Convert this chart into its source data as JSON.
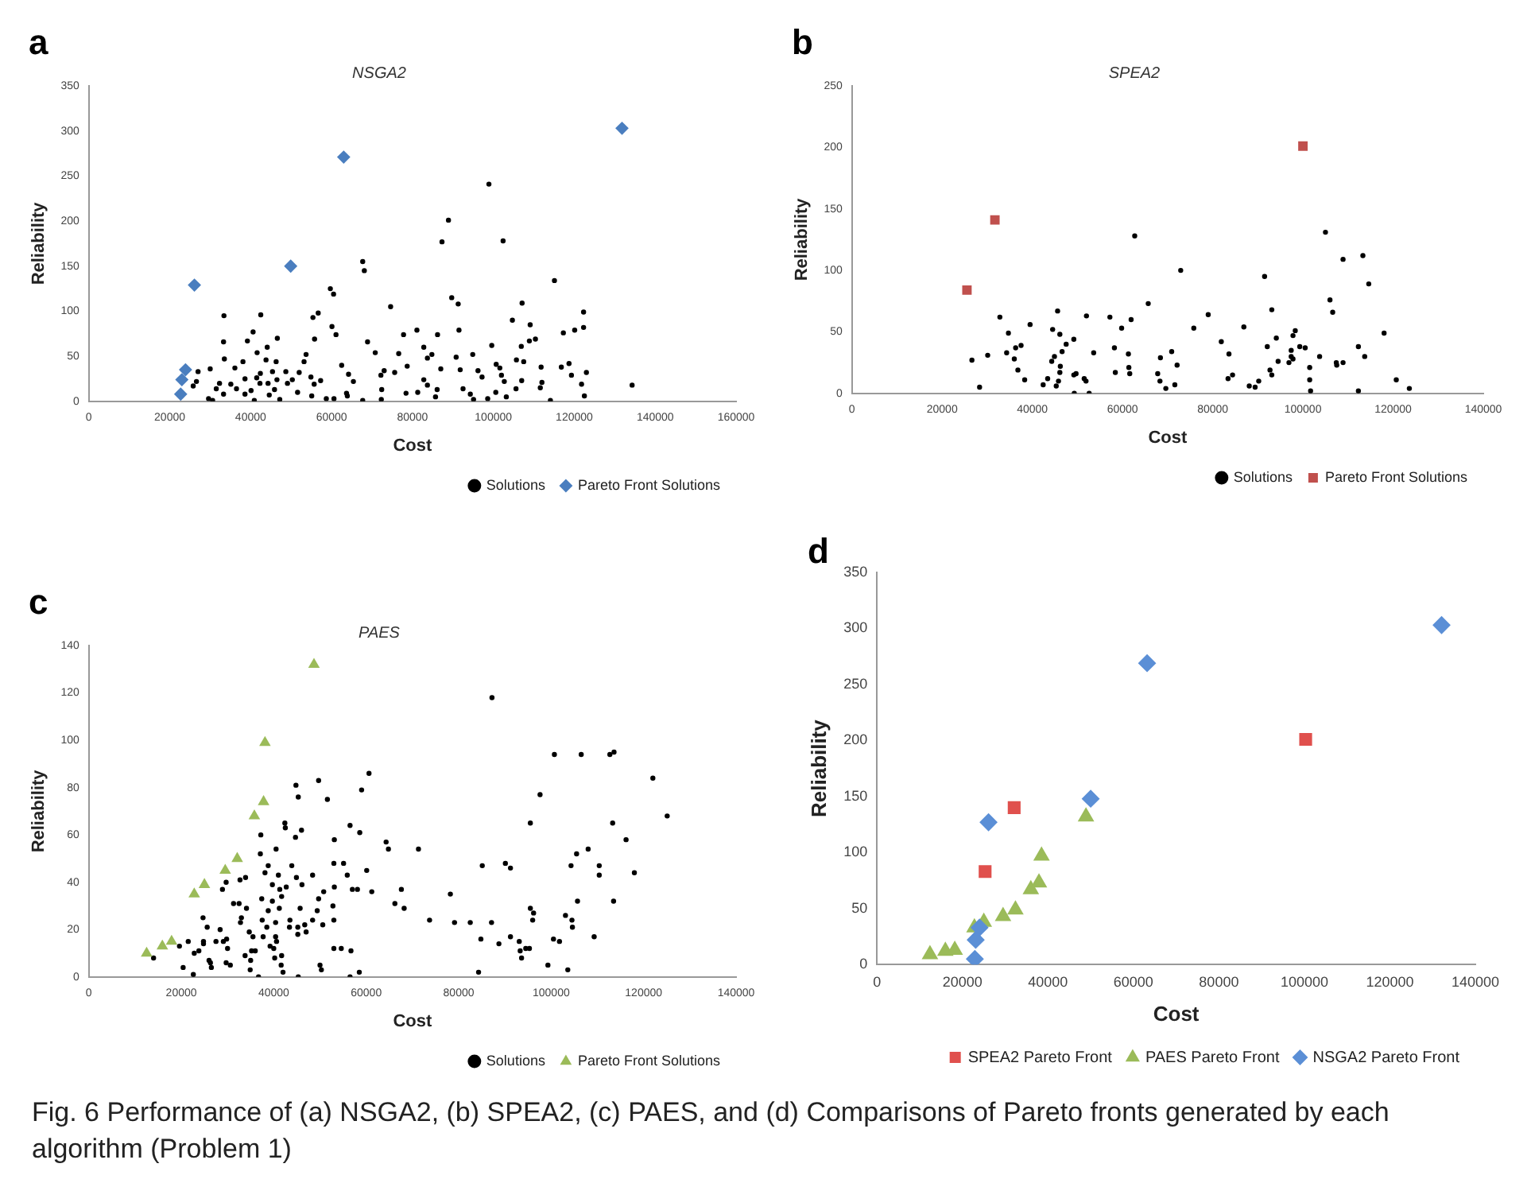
{
  "chart_data": [
    {
      "type": "scatter",
      "title": "NSGA2",
      "xlabel": "Cost",
      "ylabel": "Reliability",
      "annotations": [
        "a"
      ],
      "xlim": [
        0,
        160000
      ],
      "xticks": [
        0,
        20000,
        40000,
        60000,
        80000,
        100000,
        120000,
        140000,
        160000
      ],
      "ylim": [
        0,
        350
      ],
      "yticks": [
        0,
        50,
        100,
        150,
        200,
        250,
        300,
        350
      ],
      "legend": "bottom",
      "grid": false,
      "series": [
        {
          "name": "Solutions",
          "color": "#000000",
          "marker": "circle",
          "x": [
            98900,
            88900,
            87300,
            102400,
            67700,
            68100,
            59700,
            60500,
            115100,
            89700,
            91300,
            107100,
            74600,
            33400,
            42500,
            56700,
            55400,
            122300,
            104700,
            109100,
            91500,
            81100,
            122300,
            120100,
            60100,
            40600,
            77800,
            86200,
            61100,
            117300,
            39200,
            33300,
            68900,
            55800,
            46600,
            108900,
            110400,
            106900,
            99600,
            44100,
            82800,
            70800,
            76600,
            41600,
            94900,
            53700,
            53200,
            84800,
            83700,
            33500,
            38100,
            43800,
            46300,
            90800,
            105700,
            107500,
            118700,
            116800,
            62500,
            78700,
            36100,
            30000,
            96200,
            100700,
            101600,
            111800,
            73000,
            75600,
            42400,
            45400,
            48700,
            52000,
            64200,
            27000,
            123000,
            119300,
            91800,
            87000,
            38600,
            41500,
            46500,
            50300,
            54900,
            57300,
            65400,
            72200,
            82800,
            83700,
            97200,
            102000,
            102700,
            107000,
            112000,
            121800,
            134300,
            32300,
            35100,
            42300,
            44300,
            49100,
            55700,
            25800,
            26600,
            31500,
            36500,
            40100,
            45900,
            51600,
            63700,
            72400,
            81300,
            86100,
            92500,
            94300,
            100600,
            105600,
            111600,
            33300,
            38600,
            44600,
            55100,
            63900,
            78400,
            85700,
            103200,
            122500,
            29600,
            30600,
            40900,
            47200,
            58700,
            60600,
            67700,
            72300,
            95100,
            98600,
            114100
          ],
          "values": [
            241,
            201,
            177,
            178,
            155,
            145,
            125,
            119,
            134,
            115,
            108,
            109,
            105,
            95,
            96,
            98,
            93,
            99,
            90,
            85,
            79,
            79,
            82,
            79,
            83,
            77,
            74,
            74,
            74,
            76,
            67,
            66,
            66,
            69,
            70,
            67,
            69,
            61,
            62,
            60,
            60,
            54,
            53,
            54,
            52,
            52,
            44,
            52,
            48,
            47,
            44,
            46,
            44,
            49,
            46,
            44,
            42,
            38,
            40,
            39,
            37,
            36,
            34,
            41,
            37,
            38,
            34,
            32,
            31,
            33,
            33,
            32,
            30,
            33,
            32,
            29,
            35,
            36,
            25,
            26,
            24,
            24,
            27,
            23,
            22,
            29,
            24,
            18,
            27,
            29,
            22,
            23,
            21,
            19,
            18,
            20,
            19,
            20,
            20,
            20,
            19,
            17,
            22,
            14,
            14,
            12,
            13,
            10,
            9,
            13,
            10,
            13,
            14,
            8,
            10,
            14,
            15,
            8,
            8,
            7,
            6,
            6,
            9,
            5,
            5,
            6,
            3,
            1,
            1,
            2,
            3,
            3,
            1,
            2,
            2,
            3,
            1
          ]
        },
        {
          "name": "Pareto Front Solutions",
          "color": "#4a7ebf",
          "marker": "diamond",
          "x": [
            22700,
            23000,
            23900,
            26100,
            49900,
            63000,
            131800
          ],
          "values": [
            8,
            24,
            35,
            129,
            150,
            271,
            303
          ]
        }
      ]
    },
    {
      "type": "scatter",
      "title": "SPEA2",
      "xlabel": "Cost",
      "ylabel": "Reliability",
      "annotations": [
        "b"
      ],
      "xlim": [
        0,
        140000
      ],
      "xticks": [
        0,
        20000,
        40000,
        60000,
        80000,
        100000,
        120000,
        140000
      ],
      "ylim": [
        0,
        250
      ],
      "yticks": [
        0,
        50,
        100,
        150,
        200,
        250
      ],
      "legend": "bottom",
      "grid": false,
      "series": [
        {
          "name": "Solutions",
          "color": "#000000",
          "marker": "circle",
          "x": [
            26600,
            28300,
            30100,
            32800,
            34700,
            34300,
            36000,
            36300,
            37500,
            36800,
            38300,
            39500,
            42400,
            43400,
            44300,
            44500,
            44900,
            45300,
            45800,
            45600,
            46100,
            46100,
            46200,
            46600,
            47500,
            49200,
            49200,
            49700,
            49300,
            51500,
            51900,
            52000,
            52600,
            53600,
            57200,
            58200,
            58400,
            59800,
            61300,
            61400,
            61600,
            61900,
            62700,
            65700,
            67800,
            68300,
            68400,
            69600,
            70900,
            71600,
            72100,
            72900,
            75800,
            79000,
            81900,
            83400,
            83600,
            84400,
            86900,
            88100,
            89400,
            90200,
            91500,
            92100,
            92700,
            93100,
            93100,
            94100,
            94500,
            96900,
            97400,
            97400,
            97800,
            97800,
            98300,
            99300,
            100500,
            101500,
            101500,
            101700,
            103700,
            105000,
            106000,
            106600,
            107400,
            107500,
            108900,
            108900,
            112300,
            112300,
            113300,
            113700,
            114600,
            118000,
            120700,
            123600
          ],
          "values": [
            27,
            5,
            31,
            62,
            49,
            33,
            28,
            37,
            39,
            19,
            11,
            56,
            7,
            12,
            26,
            52,
            30,
            6,
            10,
            67,
            48,
            17,
            22,
            34,
            40,
            44,
            15,
            16,
            0,
            12,
            10,
            63,
            0,
            33,
            62,
            37,
            17,
            53,
            32,
            21,
            16,
            60,
            128,
            73,
            16,
            10,
            29,
            4,
            34,
            7,
            23,
            100,
            53,
            64,
            42,
            12,
            32,
            15,
            54,
            6,
            5,
            10,
            95,
            38,
            19,
            15,
            68,
            45,
            26,
            25,
            35,
            30,
            47,
            28,
            51,
            38,
            37,
            21,
            11,
            2,
            30,
            131,
            76,
            66,
            25,
            23,
            25,
            109,
            38,
            2,
            112,
            30,
            89,
            49,
            11,
            4
          ]
        },
        {
          "name": "Pareto Front Solutions",
          "color": "#c0504d",
          "marker": "square",
          "x": [
            25500,
            31700,
            100000
          ],
          "values": [
            84,
            141,
            201
          ]
        }
      ]
    },
    {
      "type": "scatter",
      "title": "PAES",
      "xlabel": "Cost",
      "ylabel": "Reliability",
      "annotations": [
        "c"
      ],
      "xlim": [
        0,
        140000
      ],
      "xticks": [
        0,
        20000,
        40000,
        60000,
        80000,
        100000,
        120000,
        140000
      ],
      "ylim": [
        0,
        140
      ],
      "yticks": [
        0,
        20,
        40,
        60,
        80,
        100,
        120,
        140
      ],
      "legend": "bottom",
      "grid": false,
      "series": [
        {
          "name": "Solutions",
          "color": "#000000",
          "marker": "circle",
          "x": [
            14000,
            19600,
            20400,
            21500,
            22600,
            22800,
            23800,
            24700,
            24800,
            24800,
            25600,
            26000,
            26300,
            26500,
            27500,
            28400,
            28900,
            29100,
            29700,
            29800,
            29700,
            30000,
            30600,
            31300,
            32500,
            32700,
            33000,
            32800,
            33900,
            34100,
            33800,
            34700,
            34900,
            35000,
            35200,
            35500,
            36000,
            36700,
            37100,
            37200,
            37400,
            37500,
            37700,
            38100,
            38500,
            38800,
            38800,
            39200,
            39700,
            39700,
            40000,
            40200,
            40400,
            40400,
            40500,
            40600,
            41000,
            41200,
            41300,
            41700,
            41600,
            41700,
            42000,
            42400,
            42500,
            42700,
            43400,
            43500,
            43900,
            44700,
            44800,
            44900,
            45200,
            45200,
            45300,
            45300,
            45700,
            46000,
            46100,
            46700,
            47000,
            48400,
            48400,
            49400,
            49700,
            49700,
            50000,
            50300,
            50600,
            50800,
            51600,
            52800,
            53000,
            53000,
            53000,
            53100,
            53100,
            54600,
            55100,
            55900,
            56500,
            56500,
            56700,
            57000,
            58100,
            58500,
            58600,
            59000,
            60100,
            60600,
            61200,
            64300,
            64800,
            66200,
            67600,
            68200,
            71300,
            73700,
            78200,
            79100,
            82500,
            84300,
            84800,
            85100,
            87200,
            87100,
            88700,
            90100,
            91200,
            91200,
            93100,
            93300,
            93600,
            94500,
            95300,
            95500,
            95500,
            96000,
            96200,
            97600,
            99300,
            100500,
            100700,
            101800,
            103100,
            103600,
            104300,
            104500,
            104600,
            105500,
            105700,
            106500,
            108000,
            109300,
            110400,
            110400,
            112700,
            113300,
            113500,
            113600,
            116200,
            118000,
            122000,
            125100
          ],
          "values": [
            8,
            13,
            4,
            15,
            1,
            10,
            11,
            25,
            15,
            14,
            21,
            7,
            6,
            4,
            15,
            20,
            37,
            15,
            40,
            16,
            6,
            12,
            5,
            31,
            31,
            41,
            25,
            23,
            42,
            29,
            9,
            19,
            3,
            7,
            11,
            17,
            11,
            0,
            52,
            60,
            33,
            24,
            17,
            44,
            21,
            47,
            28,
            13,
            39,
            32,
            12,
            8,
            23,
            17,
            54,
            15,
            43,
            29,
            37,
            34,
            5,
            9,
            2,
            65,
            63,
            38,
            21,
            24,
            47,
            59,
            81,
            42,
            21,
            18,
            76,
            0,
            29,
            62,
            39,
            22,
            19,
            43,
            24,
            28,
            83,
            33,
            5,
            3,
            22,
            36,
            75,
            30,
            12,
            24,
            48,
            58,
            38,
            12,
            48,
            43,
            64,
            0,
            11,
            37,
            37,
            2,
            61,
            79,
            45,
            86,
            36,
            57,
            54,
            31,
            37,
            29,
            54,
            24,
            35,
            23,
            23,
            2,
            16,
            47,
            118,
            23,
            14,
            48,
            46,
            17,
            15,
            11,
            8,
            12,
            12,
            65,
            29,
            24,
            27,
            77,
            5,
            16,
            94,
            15,
            26,
            3,
            47,
            24,
            21,
            52,
            32,
            94,
            54,
            17,
            47,
            43,
            94,
            65,
            32,
            95,
            58,
            44,
            84,
            68
          ]
        },
        {
          "name": "Pareto Front Solutions",
          "color": "#9bbb59",
          "marker": "triangle",
          "x": [
            12500,
            15900,
            17900,
            22800,
            25000,
            29500,
            32100,
            35800,
            37800,
            38100,
            48700
          ],
          "values": [
            10,
            13,
            15,
            35,
            39,
            45,
            50,
            68,
            74,
            99,
            132
          ]
        }
      ]
    },
    {
      "type": "scatter",
      "xlabel": "Cost",
      "ylabel": "Reliability",
      "annotations": [
        "d",
        "Fig. 6 Performance of (a) NSGA2, (b) SPEA2, (c) PAES, and (d) Comparisons of Pareto fronts generated by each algorithm (Problem 1)"
      ],
      "xlim": [
        0,
        140000
      ],
      "xticks": [
        0,
        20000,
        40000,
        60000,
        80000,
        100000,
        120000,
        140000
      ],
      "ylim": [
        0,
        350
      ],
      "yticks": [
        0,
        50,
        100,
        150,
        200,
        250,
        300,
        350
      ],
      "legend": "bottom",
      "grid": false,
      "series": [
        {
          "name": "SPEA2 Pareto Front",
          "color": "#e0504d",
          "marker": "square",
          "x": [
            25300,
            32100,
            100300
          ],
          "values": [
            83,
            140,
            201
          ]
        },
        {
          "name": "PAES Pareto Front",
          "color": "#9bbb59",
          "marker": "triangle",
          "x": [
            12400,
            16000,
            18200,
            22800,
            25000,
            29500,
            32400,
            36000,
            37900,
            38500,
            48900
          ],
          "values": [
            9,
            12,
            13,
            33,
            38,
            43,
            49,
            67,
            73,
            97,
            132
          ]
        },
        {
          "name": "NSGA2 Pareto Front",
          "color": "#5b8fd6",
          "marker": "diamond",
          "x": [
            22900,
            23100,
            24000,
            26100,
            50000,
            63200,
            132100
          ],
          "values": [
            5,
            22,
            33,
            127,
            148,
            269,
            303
          ]
        }
      ]
    }
  ]
}
